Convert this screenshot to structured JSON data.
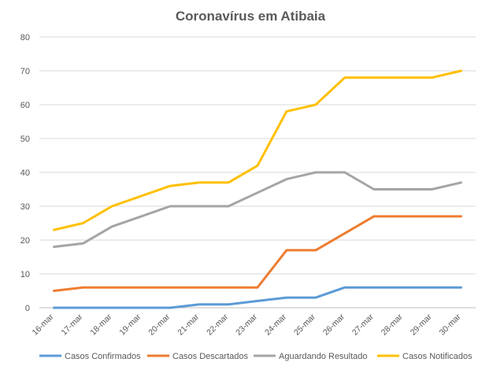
{
  "chart_data": {
    "type": "line",
    "title": "Coronavírus em Atibaia",
    "categories": [
      "16-mar",
      "17-mar",
      "18-mar",
      "19-mar",
      "20-mar",
      "21-mar",
      "22-mar",
      "23-mar",
      "24-mar",
      "25-mar",
      "26-mar",
      "27-mar",
      "28-mar",
      "29-mar",
      "30-mar"
    ],
    "ylim": [
      0,
      80
    ],
    "yticks": [
      0,
      10,
      20,
      30,
      40,
      50,
      60,
      70,
      80
    ],
    "grid": true,
    "legend_position": "bottom",
    "series": [
      {
        "name": "Casos Confirmados",
        "color": "#5b9bd5",
        "values": [
          0,
          0,
          0,
          0,
          0,
          1,
          1,
          2,
          3,
          3,
          6,
          6,
          6,
          6,
          6
        ]
      },
      {
        "name": "Casos Descartados",
        "color": "#ed7d31",
        "values": [
          5,
          6,
          6,
          6,
          6,
          6,
          6,
          6,
          17,
          17,
          22,
          27,
          27,
          27,
          27
        ]
      },
      {
        "name": "Aguardando Resultado",
        "color": "#a5a5a5",
        "values": [
          18,
          19,
          24,
          27,
          30,
          30,
          30,
          34,
          38,
          40,
          40,
          35,
          35,
          35,
          37
        ]
      },
      {
        "name": "Casos Notificados",
        "color": "#ffc000",
        "values": [
          23,
          25,
          30,
          33,
          36,
          37,
          37,
          42,
          58,
          60,
          68,
          68,
          68,
          68,
          70
        ]
      }
    ]
  }
}
